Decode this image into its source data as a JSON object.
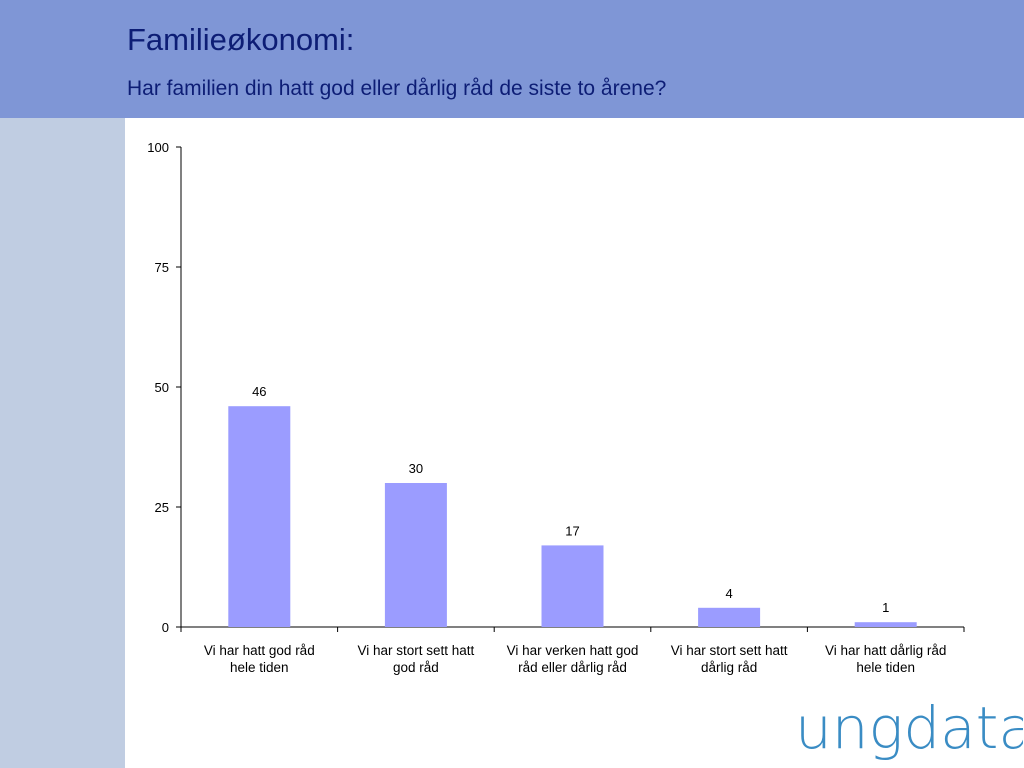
{
  "header": {
    "title": "Familieøkonomi:",
    "subtitle": "Har familien din hatt god eller dårlig råd de siste to årene?"
  },
  "logo": {
    "text": "ungdata",
    "color": "#3a8cc4"
  },
  "colors": {
    "header_bg": "#7f96d6",
    "sidebar_bg": "#c0cde2",
    "bar": "#9b9cff",
    "title_text": "#0d1d75"
  },
  "chart_data": {
    "type": "bar",
    "categories": [
      [
        "Vi har hatt god råd",
        "hele tiden"
      ],
      [
        "Vi har stort sett hatt",
        "god råd"
      ],
      [
        "Vi har verken hatt god",
        "råd eller dårlig råd"
      ],
      [
        "Vi har stort sett hatt",
        "dårlig råd"
      ],
      [
        "Vi har hatt dårlig råd",
        "hele tiden"
      ]
    ],
    "values": [
      46,
      30,
      17,
      4,
      1
    ],
    "data_labels": [
      "46",
      "30",
      "17",
      "4",
      "1"
    ],
    "yticks": [
      0,
      25,
      50,
      75,
      100
    ],
    "ytick_labels": [
      "0",
      "25",
      "50",
      "75",
      "100"
    ],
    "ylim": [
      0,
      100
    ],
    "grid": false,
    "legend": "none"
  }
}
